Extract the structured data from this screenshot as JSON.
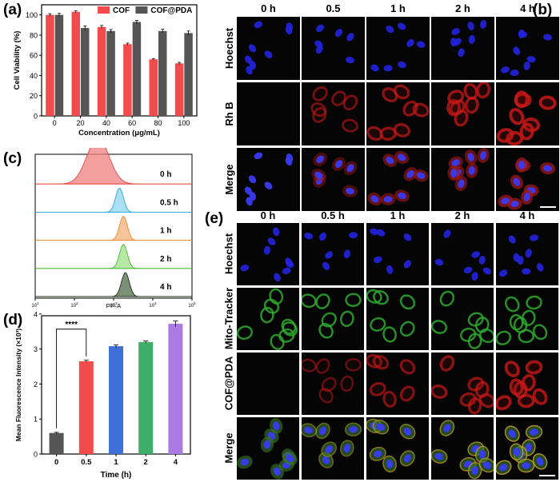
{
  "panels": {
    "a": {
      "label": "(a)",
      "chart_data": {
        "type": "bar",
        "categories": [
          "0",
          "20",
          "40",
          "60",
          "80",
          "100"
        ],
        "series": [
          {
            "name": "COF",
            "color": "#f24b4b",
            "values": [
              100,
              103,
              88,
              71,
              56,
              52
            ],
            "errors": [
              1.2,
              1.0,
              1.5,
              1.0,
              0.8,
              1.0
            ]
          },
          {
            "name": "COF@PDA",
            "color": "#555555",
            "values": [
              100,
              87,
              84,
              93,
              84,
              82
            ],
            "errors": [
              1.5,
              2.0,
              1.5,
              1.5,
              1.8,
              2.0
            ]
          }
        ],
        "xlabel": "Concentration (μg/mL)",
        "ylabel": "Cell Viability (%)",
        "ylim": [
          0,
          110
        ],
        "yticks": [
          0,
          20,
          40,
          60,
          80,
          100
        ]
      }
    },
    "b": {
      "label": "(b)",
      "columns": [
        "0 h",
        "0.5",
        "1 h",
        "2 h",
        "4 h"
      ],
      "rows": [
        "Hoechst",
        "Rh B",
        "Merge"
      ]
    },
    "c": {
      "label": "(c)",
      "chart_data": {
        "type": "histogram-overlay",
        "xlabel": "PE-A",
        "xscale": "log",
        "xlim": [
          10,
          100000
        ],
        "xticks": [
          "10^1",
          "10^2",
          "10^3",
          "10^4",
          "10^5"
        ],
        "series": [
          {
            "name": "0 h",
            "label": "0 h",
            "peak_log10": 2.6,
            "width_log10": 0.28,
            "color": "#f08080",
            "line": "#e84545"
          },
          {
            "name": "0.5 h",
            "label": "0.5 h",
            "peak_log10": 3.15,
            "width_log10": 0.1,
            "color": "#8fd6f0",
            "line": "#2aa8d8"
          },
          {
            "name": "1 h",
            "label": "1 h",
            "peak_log10": 3.25,
            "width_log10": 0.1,
            "color": "#f4b27a",
            "line": "#e88a2e"
          },
          {
            "name": "2 h",
            "label": "2 h",
            "peak_log10": 3.25,
            "width_log10": 0.1,
            "color": "#9fe08a",
            "line": "#46b82e"
          },
          {
            "name": "4 h",
            "label": "4 h",
            "peak_log10": 3.3,
            "width_log10": 0.1,
            "color": "#4f6b45",
            "line": "#1e2e1a"
          }
        ]
      }
    },
    "d": {
      "label": "(d)",
      "chart_data": {
        "type": "bar",
        "categories": [
          "0",
          "0.5",
          "1",
          "2",
          "4"
        ],
        "values": [
          0.6,
          2.65,
          3.08,
          3.2,
          3.72
        ],
        "errors": [
          0.02,
          0.03,
          0.04,
          0.03,
          0.08
        ],
        "colors": [
          "#555555",
          "#f24b4b",
          "#3d6fd6",
          "#3fae6a",
          "#a97be3"
        ],
        "xlabel": "Time (h)",
        "ylabel": "Mean Fluorescence Intensity (×10³)",
        "ylim": [
          0,
          4
        ],
        "yticks": [
          0,
          1,
          2,
          3,
          4
        ],
        "annotation": "****"
      }
    },
    "e": {
      "label": "(e)",
      "columns": [
        "0 h",
        "0.5 h",
        "1 h",
        "2 h",
        "4 h"
      ],
      "rows": [
        "Hoechst",
        "Mito-Tracker",
        "COF@PDA",
        "Merge"
      ]
    }
  }
}
